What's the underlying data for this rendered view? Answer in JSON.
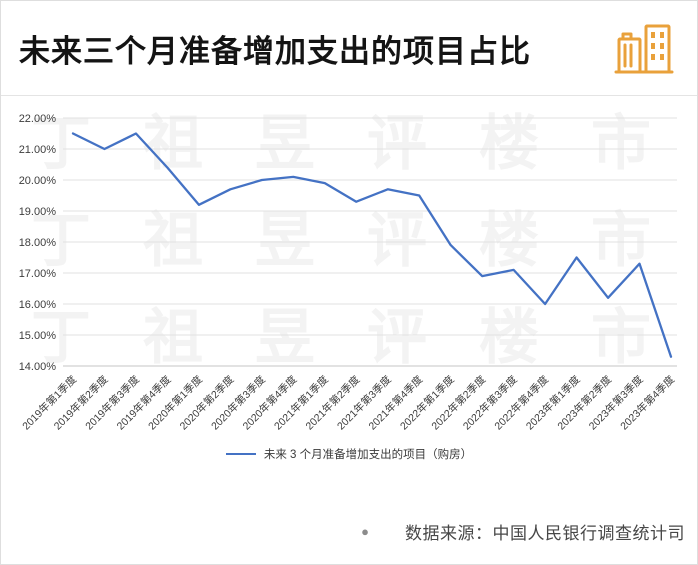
{
  "header": {
    "title": "未来三个月准备增加支出的项目占比",
    "icon": "buildings-icon",
    "icon_color": "#E9A13B"
  },
  "chart_data": {
    "type": "line",
    "title": "未来三个月准备增加支出的项目占比",
    "categories": [
      "2019年第1季度",
      "2019年第2季度",
      "2019年第3季度",
      "2019年第4季度",
      "2020年第1季度",
      "2020年第2季度",
      "2020年第3季度",
      "2020年第4季度",
      "2021年第1季度",
      "2021年第2季度",
      "2021年第3季度",
      "2021年第4季度",
      "2022年第1季度",
      "2022年第2季度",
      "2022年第3季度",
      "2022年第4季度",
      "2023年第1季度",
      "2023年第2季度",
      "2023年第3季度",
      "2023年第4季度"
    ],
    "series": [
      {
        "name": "未来 3 个月准备增加支出的项目（购房）",
        "color": "#4472c4",
        "values": [
          21.5,
          21.0,
          21.5,
          20.4,
          19.2,
          19.7,
          20.0,
          20.1,
          19.9,
          19.3,
          19.7,
          19.5,
          17.9,
          16.9,
          17.1,
          16.0,
          17.5,
          16.2,
          17.3,
          14.3
        ]
      }
    ],
    "yticks": [
      "22.00%",
      "21.00%",
      "20.00%",
      "19.00%",
      "18.00%",
      "17.00%",
      "16.00%",
      "15.00%",
      "14.00%"
    ],
    "ylim": [
      14,
      22
    ],
    "ytick_step": 1,
    "grid": true,
    "legend_position": "bottom",
    "xlabel": "",
    "ylabel": ""
  },
  "footer": {
    "bullet": "●",
    "source_text": "数据来源：中国人民银行调查统计司"
  },
  "watermark": {
    "text": "丁祖昱评楼市"
  }
}
